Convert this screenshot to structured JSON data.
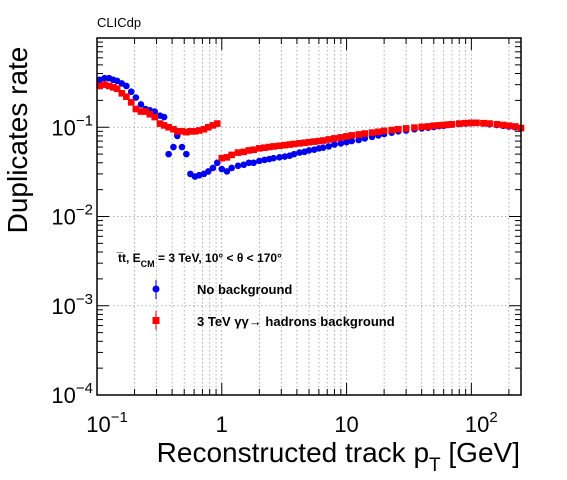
{
  "chart_data": {
    "type": "scatter",
    "title": "CLICdp",
    "xlabel": "Reconstructed track p",
    "xlabel_sub": "T",
    "xlabel_unit": " [GeV]",
    "ylabel": "Duplicates rate",
    "xscale": "log",
    "yscale": "log",
    "xlim": [
      0.1,
      250
    ],
    "ylim": [
      0.0001,
      1
    ],
    "grid": true,
    "x_ticks": [
      {
        "value": 0.1,
        "base": "10",
        "exp": "−1"
      },
      {
        "value": 1,
        "base": "1",
        "exp": ""
      },
      {
        "value": 10,
        "base": "10",
        "exp": ""
      },
      {
        "value": 100,
        "base": "10",
        "exp": "2"
      }
    ],
    "y_ticks": [
      {
        "value": 0.1,
        "base": "10",
        "exp": "−1"
      },
      {
        "value": 0.01,
        "base": "10",
        "exp": "−2"
      },
      {
        "value": 0.001,
        "base": "10",
        "exp": "−3"
      },
      {
        "value": 0.0001,
        "base": "10",
        "exp": "−4"
      }
    ],
    "legend": {
      "position": "bottom-left",
      "header": {
        "process": "t̅t, E",
        "process_sub": "CM",
        "condition": " = 3 TeV, 10° < θ < 170°"
      }
    },
    "series": [
      {
        "name": "No background",
        "color": "#0000ee",
        "marker": "circle",
        "x": [
          0.105,
          0.115,
          0.125,
          0.135,
          0.145,
          0.158,
          0.172,
          0.188,
          0.205,
          0.225,
          0.245,
          0.265,
          0.29,
          0.32,
          0.345,
          0.375,
          0.41,
          0.44,
          0.48,
          0.52,
          0.56,
          0.61,
          0.66,
          0.72,
          0.78,
          0.85,
          0.92,
          1.0,
          1.1,
          1.2,
          1.35,
          1.5,
          1.65,
          1.8,
          2.0,
          2.2,
          2.4,
          2.6,
          2.9,
          3.2,
          3.5,
          3.8,
          4.2,
          4.6,
          5.0,
          5.5,
          6.0,
          6.5,
          7.2,
          8.0,
          9.0,
          10,
          11,
          12.5,
          14,
          16,
          18,
          20,
          23,
          26,
          30,
          35,
          40,
          45,
          50,
          55,
          60,
          65,
          70,
          80,
          90,
          100,
          110,
          125,
          140,
          160,
          180,
          200,
          225,
          250
        ],
        "values": [
          0.34,
          0.355,
          0.355,
          0.34,
          0.33,
          0.31,
          0.29,
          0.25,
          0.215,
          0.18,
          0.16,
          0.155,
          0.15,
          0.135,
          0.13,
          0.05,
          0.06,
          0.08,
          0.06,
          0.05,
          0.03,
          0.028,
          0.029,
          0.03,
          0.032,
          0.035,
          0.04,
          0.034,
          0.032,
          0.035,
          0.037,
          0.038,
          0.04,
          0.04,
          0.042,
          0.043,
          0.044,
          0.045,
          0.046,
          0.047,
          0.048,
          0.05,
          0.052,
          0.053,
          0.055,
          0.056,
          0.058,
          0.059,
          0.061,
          0.064,
          0.066,
          0.068,
          0.07,
          0.072,
          0.075,
          0.078,
          0.081,
          0.084,
          0.087,
          0.09,
          0.092,
          0.095,
          0.097,
          0.099,
          0.101,
          0.103,
          0.104,
          0.106,
          0.107,
          0.109,
          0.11,
          0.111,
          0.112,
          0.11,
          0.108,
          0.106,
          0.104,
          0.102,
          0.1,
          0.097
        ]
      },
      {
        "name": "3 TeV  γγ→ hadrons background",
        "color": "#ff0000",
        "marker": "square",
        "x": [
          0.105,
          0.115,
          0.125,
          0.135,
          0.145,
          0.158,
          0.172,
          0.188,
          0.205,
          0.225,
          0.245,
          0.265,
          0.29,
          0.32,
          0.345,
          0.375,
          0.41,
          0.44,
          0.48,
          0.52,
          0.56,
          0.61,
          0.66,
          0.72,
          0.78,
          0.85,
          0.92,
          1.0,
          1.1,
          1.2,
          1.35,
          1.5,
          1.65,
          1.8,
          2.0,
          2.2,
          2.4,
          2.6,
          2.9,
          3.2,
          3.5,
          3.8,
          4.2,
          4.6,
          5.0,
          5.5,
          6.0,
          6.5,
          7.2,
          8.0,
          9.0,
          10,
          11,
          12.5,
          14,
          16,
          18,
          20,
          23,
          26,
          30,
          35,
          40,
          45,
          50,
          55,
          60,
          65,
          70,
          80,
          90,
          100,
          110,
          125,
          140,
          160,
          180,
          200,
          225,
          250
        ],
        "values": [
          0.29,
          0.3,
          0.29,
          0.28,
          0.27,
          0.24,
          0.22,
          0.19,
          0.16,
          0.15,
          0.15,
          0.14,
          0.13,
          0.11,
          0.105,
          0.1,
          0.095,
          0.09,
          0.09,
          0.088,
          0.09,
          0.09,
          0.092,
          0.095,
          0.1,
          0.105,
          0.11,
          0.045,
          0.046,
          0.049,
          0.052,
          0.053,
          0.055,
          0.056,
          0.058,
          0.059,
          0.06,
          0.061,
          0.062,
          0.063,
          0.064,
          0.065,
          0.066,
          0.067,
          0.068,
          0.069,
          0.07,
          0.071,
          0.073,
          0.075,
          0.077,
          0.079,
          0.081,
          0.083,
          0.085,
          0.087,
          0.089,
          0.091,
          0.093,
          0.095,
          0.097,
          0.099,
          0.101,
          0.102,
          0.104,
          0.105,
          0.106,
          0.107,
          0.108,
          0.11,
          0.111,
          0.112,
          0.112,
          0.111,
          0.11,
          0.108,
          0.106,
          0.104,
          0.102,
          0.098
        ]
      }
    ]
  }
}
